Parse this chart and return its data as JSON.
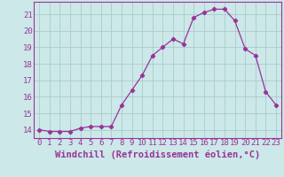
{
  "x": [
    0,
    1,
    2,
    3,
    4,
    5,
    6,
    7,
    8,
    9,
    10,
    11,
    12,
    13,
    14,
    15,
    16,
    17,
    18,
    19,
    20,
    21,
    22,
    23
  ],
  "y": [
    14.0,
    13.9,
    13.9,
    13.9,
    14.1,
    14.2,
    14.2,
    14.2,
    15.5,
    16.4,
    17.3,
    18.5,
    19.0,
    19.5,
    19.2,
    20.8,
    21.1,
    21.3,
    21.3,
    20.6,
    18.9,
    18.5,
    16.3,
    15.5
  ],
  "line_color": "#993399",
  "marker": "D",
  "marker_size": 2.2,
  "bg_color": "#cce8e8",
  "grid_color": "#aacccc",
  "xlabel": "Windchill (Refroidissement éolien,°C)",
  "xlabel_fontsize": 7.5,
  "yticks": [
    14,
    15,
    16,
    17,
    18,
    19,
    20,
    21
  ],
  "xticks": [
    0,
    1,
    2,
    3,
    4,
    5,
    6,
    7,
    8,
    9,
    10,
    11,
    12,
    13,
    14,
    15,
    16,
    17,
    18,
    19,
    20,
    21,
    22,
    23
  ],
  "ylim": [
    13.5,
    21.75
  ],
  "xlim": [
    -0.5,
    23.5
  ],
  "tick_color": "#993399",
  "tick_fontsize": 6.5,
  "spine_color": "#993399"
}
